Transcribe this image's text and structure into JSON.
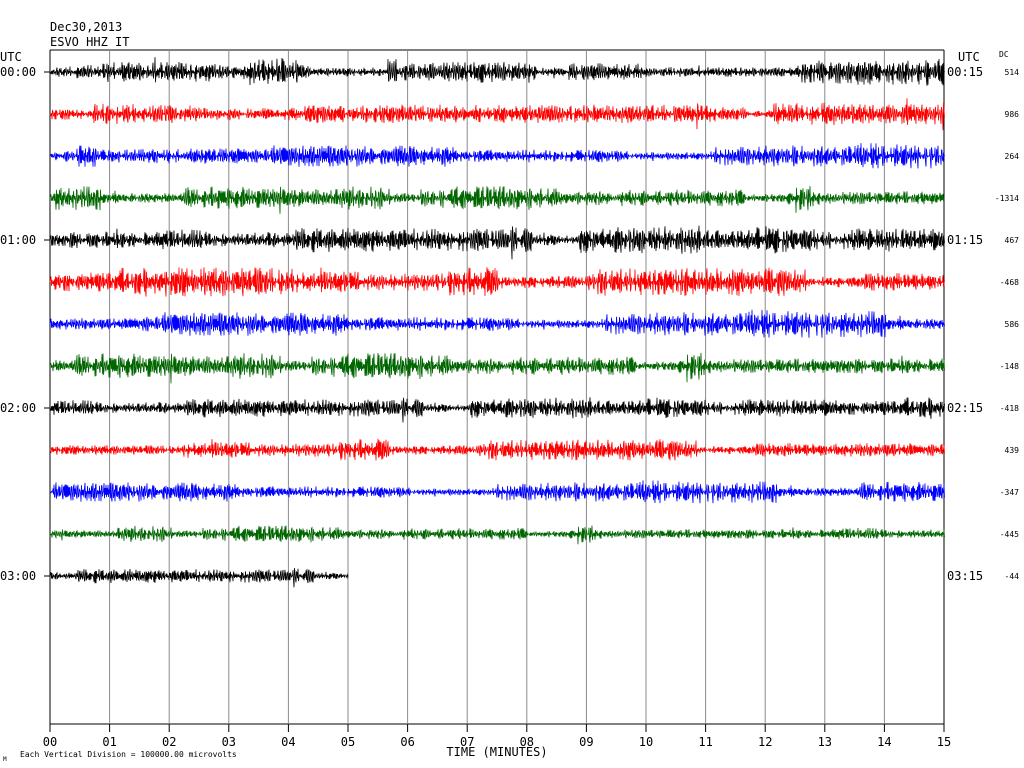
{
  "header": {
    "date": "Dec30,2013",
    "station": "ESVO HHZ IT",
    "left_utc": "UTC",
    "right_utc": "UTC",
    "dc_header": "DC"
  },
  "footer": {
    "xlabel": "TIME (MINUTES)",
    "scale_note": "Each Vertical Division = 100000.00 microvolts",
    "corner_mark": "M"
  },
  "chart_data": {
    "type": "line",
    "title": "Dec30,2013 ESVO HHZ IT",
    "xlabel": "TIME (MINUTES)",
    "ylabel": "",
    "x_ticks": [
      "00",
      "01",
      "02",
      "03",
      "04",
      "05",
      "06",
      "07",
      "08",
      "09",
      "10",
      "11",
      "12",
      "13",
      "14",
      "15"
    ],
    "xlim": [
      0,
      15
    ],
    "grid": "vertical lines at each minute",
    "left_time_labels": [
      {
        "row": 0,
        "label": "00:00"
      },
      {
        "row": 4,
        "label": "01:00"
      },
      {
        "row": 8,
        "label": "02:00"
      },
      {
        "row": 12,
        "label": "03:00"
      }
    ],
    "right_time_labels": [
      {
        "row": 0,
        "label": "00:15"
      },
      {
        "row": 4,
        "label": "01:15"
      },
      {
        "row": 8,
        "label": "02:15"
      },
      {
        "row": 12,
        "label": "03:15"
      }
    ],
    "traces": [
      {
        "row": 0,
        "color": "#000000",
        "dc": "514",
        "end_minute": 15,
        "amplitude": 0.55
      },
      {
        "row": 1,
        "color": "#ff0000",
        "dc": "986",
        "end_minute": 15,
        "amplitude": 0.55
      },
      {
        "row": 2,
        "color": "#0000ff",
        "dc": "264",
        "end_minute": 15,
        "amplitude": 0.5
      },
      {
        "row": 3,
        "color": "#006600",
        "dc": "-1314",
        "end_minute": 15,
        "amplitude": 0.5
      },
      {
        "row": 4,
        "color": "#000000",
        "dc": "467",
        "end_minute": 15,
        "amplitude": 0.6
      },
      {
        "row": 5,
        "color": "#ff0000",
        "dc": "-468",
        "end_minute": 15,
        "amplitude": 0.6
      },
      {
        "row": 6,
        "color": "#0000ff",
        "dc": "586",
        "end_minute": 15,
        "amplitude": 0.55
      },
      {
        "row": 7,
        "color": "#006600",
        "dc": "-148",
        "end_minute": 15,
        "amplitude": 0.55
      },
      {
        "row": 8,
        "color": "#000000",
        "dc": "-418",
        "end_minute": 15,
        "amplitude": 0.45
      },
      {
        "row": 9,
        "color": "#ff0000",
        "dc": "439",
        "end_minute": 15,
        "amplitude": 0.45
      },
      {
        "row": 10,
        "color": "#0000ff",
        "dc": "-347",
        "end_minute": 15,
        "amplitude": 0.45
      },
      {
        "row": 11,
        "color": "#006600",
        "dc": "-445",
        "end_minute": 15,
        "amplitude": 0.35
      },
      {
        "row": 12,
        "color": "#000000",
        "dc": "-44",
        "end_minute": 5,
        "amplitude": 0.35
      }
    ]
  }
}
